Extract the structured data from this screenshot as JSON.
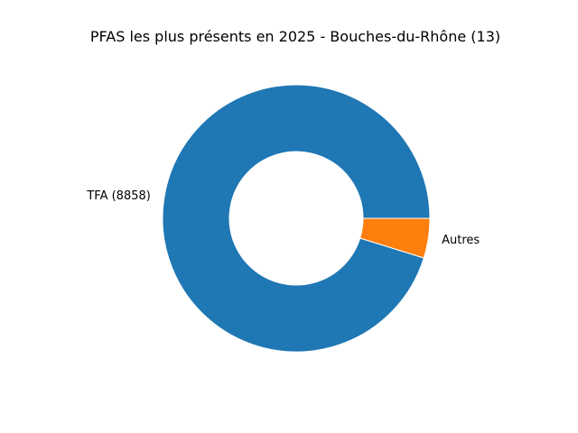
{
  "chart_data": {
    "type": "pie",
    "donut": true,
    "title": "PFAS les plus présents en 2025 - Bouches-du-Rhône (13)",
    "slices": [
      {
        "label": "TFA (8858)",
        "value": 95.2,
        "color": "#1f77b4"
      },
      {
        "label": "Autres",
        "value": 4.8,
        "color": "#ff7f0e"
      }
    ],
    "start_angle_deg": 0,
    "direction": "counterclockwise",
    "legend": "none"
  }
}
